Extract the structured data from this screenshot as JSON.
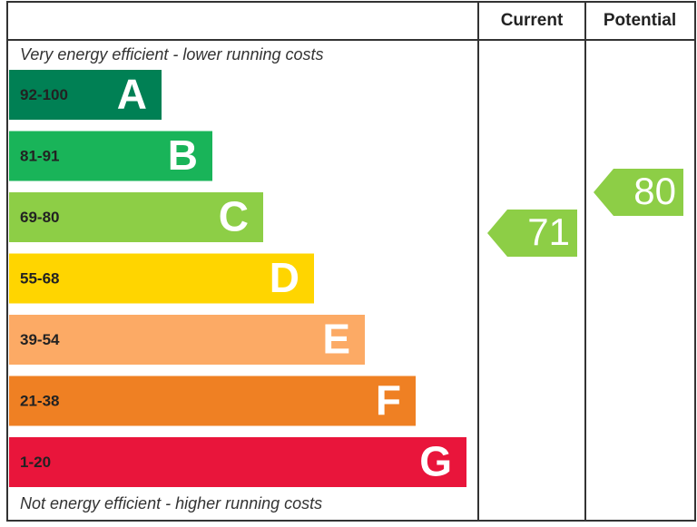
{
  "header": {
    "current": "Current",
    "potential": "Potential"
  },
  "top_note": "Very energy efficient - lower running costs",
  "bottom_note": "Not energy efficient - higher running costs",
  "bands": [
    {
      "range": "92-100",
      "letter": "A",
      "color": "#008054"
    },
    {
      "range": "81-91",
      "letter": "B",
      "color": "#19b459"
    },
    {
      "range": "69-80",
      "letter": "C",
      "color": "#8dce46"
    },
    {
      "range": "55-68",
      "letter": "D",
      "color": "#ffd500"
    },
    {
      "range": "39-54",
      "letter": "E",
      "color": "#fcaa65"
    },
    {
      "range": "21-38",
      "letter": "F",
      "color": "#ef8023"
    },
    {
      "range": "1-20",
      "letter": "G",
      "color": "#e9153b"
    }
  ],
  "ratings": {
    "current": 71,
    "potential": 80
  }
}
